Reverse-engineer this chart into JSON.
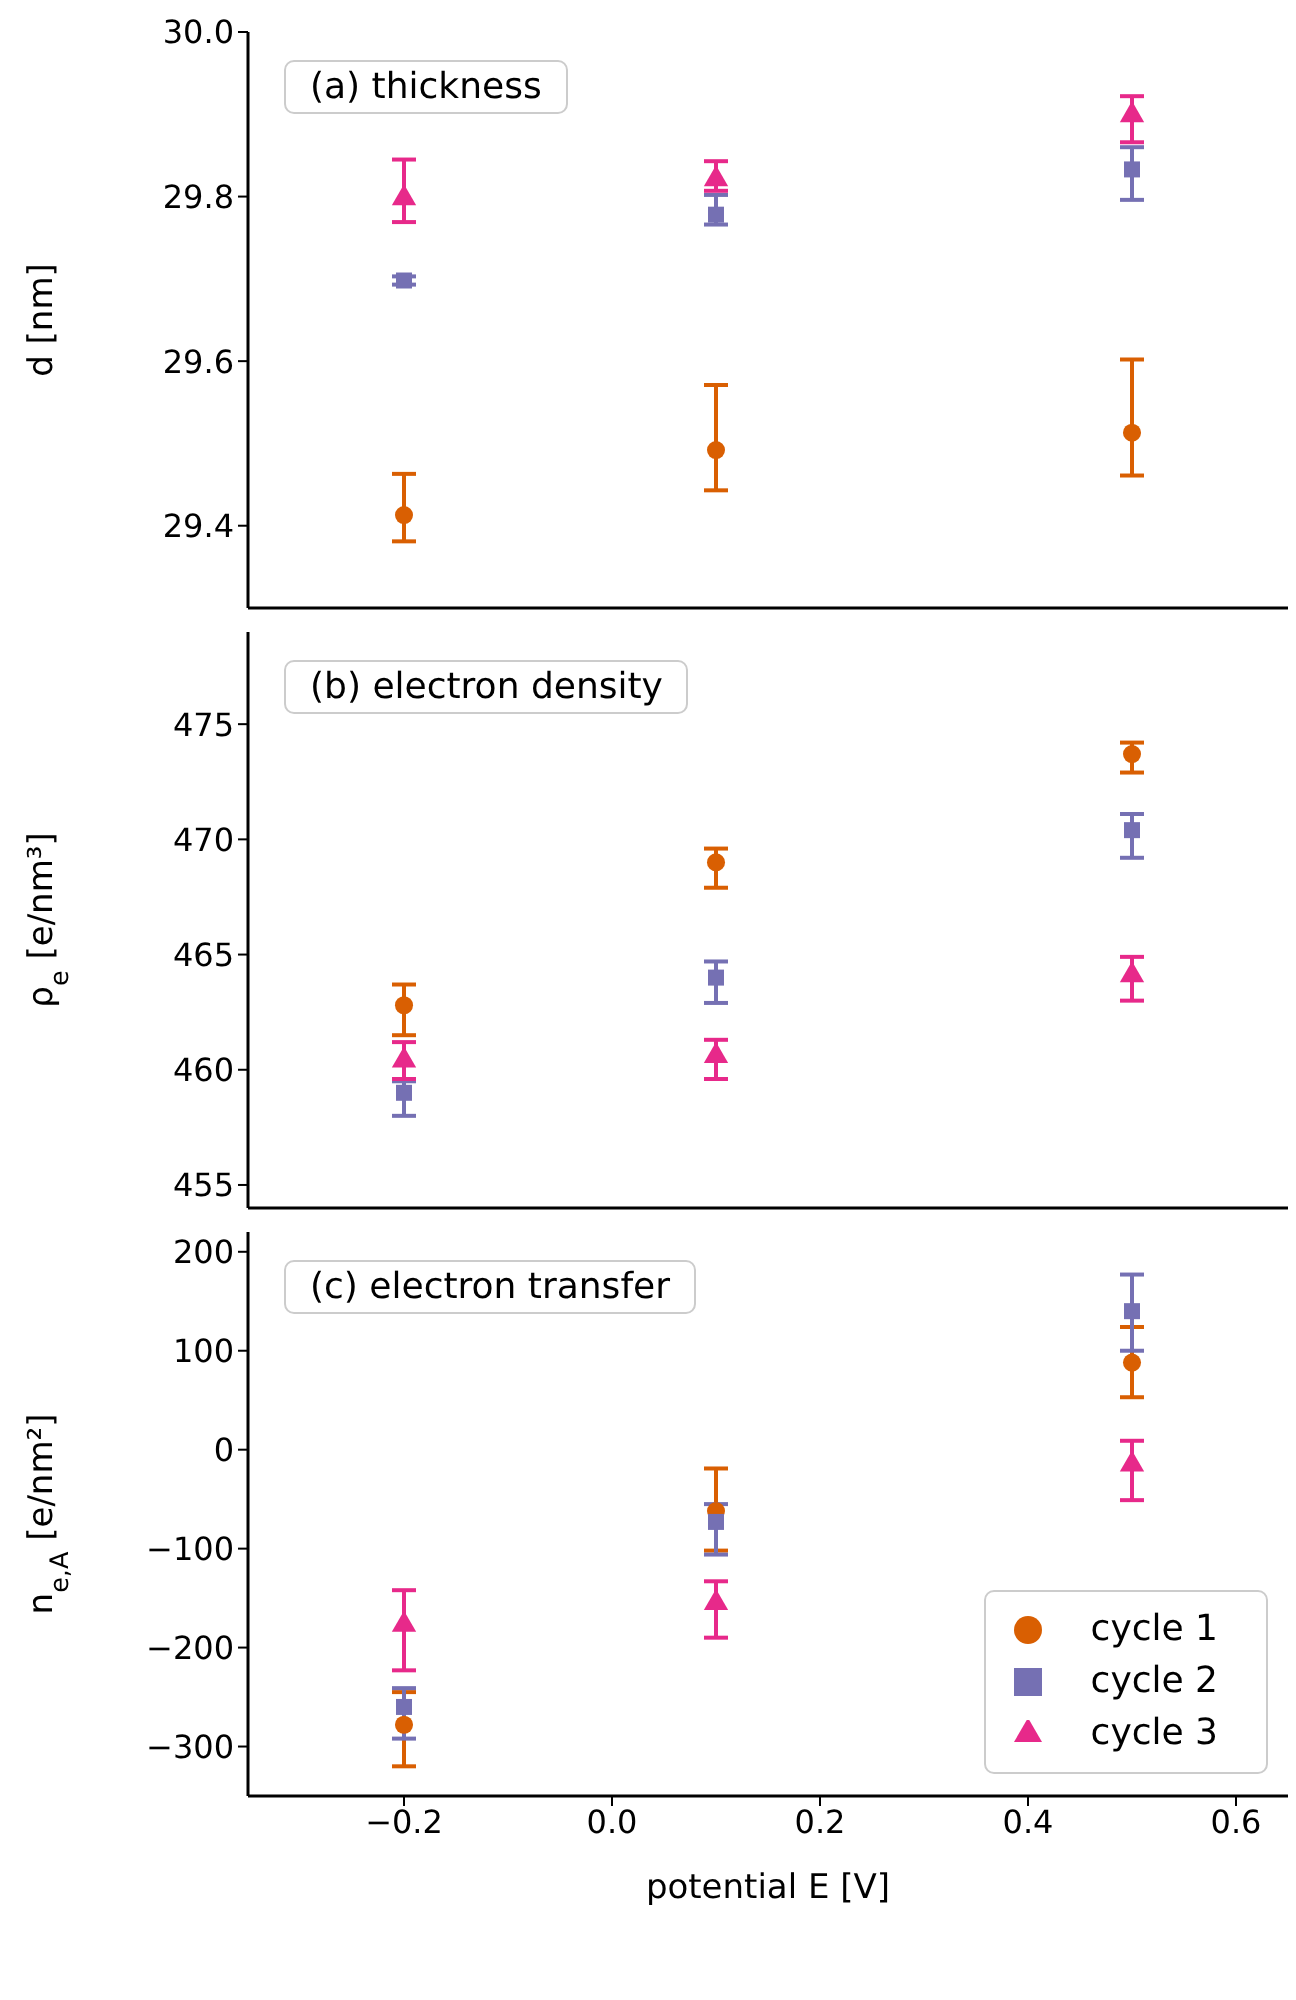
{
  "chart_data": [
    {
      "type": "scatter",
      "ylabel": "d [nm]",
      "annotations": [
        "(a) thickness"
      ],
      "xlim": [
        -0.35,
        0.65
      ],
      "xticks": [
        -0.2,
        0,
        0.2,
        0.4,
        0.6
      ],
      "ylim": [
        29.3,
        30.0
      ],
      "yticks": [
        29.4,
        29.6,
        29.8,
        {
          "value": 30,
          "label": "30.0"
        }
      ],
      "tick_labels": "y",
      "grid": false,
      "legend": false,
      "x": [
        -0.2,
        0.1,
        0.5
      ],
      "series": [
        {
          "color": "#d95f02",
          "marker": "circle",
          "values": [
            29.413,
            29.492,
            29.513
          ],
          "errors": [
            [
              29.381,
              29.463
            ],
            [
              29.443,
              29.571
            ],
            [
              29.461,
              29.602
            ]
          ]
        },
        {
          "color": "#7570b3",
          "marker": "square",
          "values": [
            29.698,
            29.778,
            29.833
          ],
          "errors": [
            [
              29.693,
              29.703
            ],
            [
              29.766,
              29.802
            ],
            [
              29.796,
              29.86
            ]
          ]
        },
        {
          "color": "#e7298a",
          "marker": "triangle",
          "values": [
            29.798,
            29.821,
            29.899
          ],
          "errors": [
            [
              29.769,
              29.845
            ],
            [
              29.807,
              29.843
            ],
            [
              29.866,
              29.922
            ]
          ]
        }
      ]
    },
    {
      "type": "scatter",
      "ylabel": "ρ$_{e}$ [e/nm³]",
      "annotations": [
        "(b) electron density"
      ],
      "xlim": [
        -0.35,
        0.65
      ],
      "xticks": [
        -0.2,
        0,
        0.2,
        0.4,
        0.6
      ],
      "ylim": [
        454,
        479
      ],
      "yticks": [
        455,
        460,
        465,
        470,
        475
      ],
      "tick_labels": "y",
      "grid": false,
      "legend": false,
      "x": [
        -0.2,
        0.1,
        0.5
      ],
      "series": [
        {
          "color": "#d95f02",
          "marker": "circle",
          "values": [
            462.8,
            469.0,
            473.7
          ],
          "errors": [
            [
              461.5,
              463.7
            ],
            [
              467.9,
              469.6
            ],
            [
              472.9,
              474.2
            ]
          ]
        },
        {
          "color": "#7570b3",
          "marker": "square",
          "values": [
            459.0,
            464.0,
            470.4
          ],
          "errors": [
            [
              458.0,
              459.5
            ],
            [
              462.9,
              464.7
            ],
            [
              469.2,
              471.1
            ]
          ]
        },
        {
          "color": "#e7298a",
          "marker": "triangle",
          "values": [
            460.4,
            460.6,
            464.1
          ],
          "errors": [
            [
              459.6,
              461.2
            ],
            [
              459.6,
              461.3
            ],
            [
              463.0,
              464.9
            ]
          ]
        }
      ]
    },
    {
      "type": "scatter",
      "xlabel": "potential E [V]",
      "ylabel": "n$_{e,A}$ [e/nm²]",
      "annotations": [
        "(c) electron transfer"
      ],
      "xlim": [
        -0.35,
        0.65
      ],
      "xticks": [
        {
          "value": -0.2,
          "label": "−0.2"
        },
        {
          "value": 0,
          "label": "0.0"
        },
        0.2,
        0.4,
        0.6
      ],
      "ylim": [
        -350,
        220
      ],
      "yticks": [
        {
          "value": -300,
          "label": "−300"
        },
        {
          "value": -200,
          "label": "−200"
        },
        {
          "value": -100,
          "label": "−100"
        },
        0,
        100,
        200
      ],
      "grid": false,
      "legend": "bottom right",
      "x": [
        -0.2,
        0.1,
        0.5
      ],
      "series": [
        {
          "name": "cycle 1",
          "color": "#d95f02",
          "marker": "circle",
          "values": [
            -278,
            -62,
            88
          ],
          "errors": [
            [
              -320,
              -245
            ],
            [
              -102,
              -19
            ],
            [
              53,
              124
            ]
          ]
        },
        {
          "name": "cycle 2",
          "color": "#7570b3",
          "marker": "square",
          "values": [
            -260,
            -73,
            140
          ],
          "errors": [
            [
              -292,
              -241
            ],
            [
              -106,
              -55
            ],
            [
              100,
              177
            ]
          ]
        },
        {
          "name": "cycle 3",
          "color": "#e7298a",
          "marker": "triangle",
          "values": [
            -177,
            -155,
            -15
          ],
          "errors": [
            [
              -223,
              -142
            ],
            [
              -190,
              -133
            ],
            [
              -51,
              9
            ]
          ]
        }
      ]
    }
  ]
}
